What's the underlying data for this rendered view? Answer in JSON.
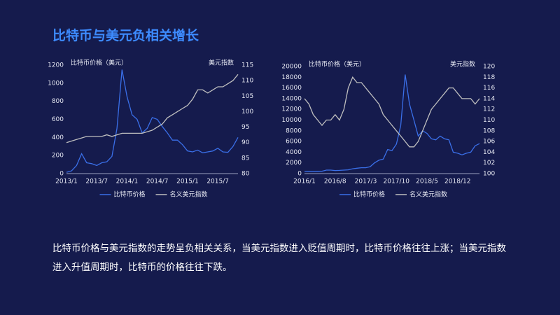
{
  "title": "比特币与美元负相关增长",
  "text": "比特币价格与美元指数的走势呈负相关关系，当美元指数进入贬值周期时，比特币价格往往上涨；当美元指数进入升值周期时，比特币的价格往往下跌。",
  "chart_data": [
    {
      "type": "line",
      "y_label": "比特币价格（美元）",
      "y2_label": "美元指数",
      "categories": [
        "2013/1",
        null,
        null,
        null,
        null,
        null,
        "2013/7",
        null,
        null,
        null,
        null,
        null,
        "2014/1",
        null,
        null,
        null,
        null,
        null,
        "2014/7",
        null,
        null,
        null,
        null,
        null,
        "2015/1",
        null,
        null,
        null,
        null,
        null,
        "2015/7",
        null,
        null,
        null,
        null
      ],
      "series": [
        {
          "name": "比特币价格",
          "color": "#3a6fe8",
          "values": [
            15,
            30,
            90,
            220,
            120,
            110,
            90,
            120,
            130,
            190,
            500,
            1150,
            850,
            650,
            600,
            450,
            500,
            620,
            600,
            520,
            450,
            370,
            370,
            320,
            250,
            240,
            260,
            230,
            240,
            250,
            280,
            240,
            235,
            300,
            400
          ]
        },
        {
          "name": "名义美元指数",
          "color": "#bfbfbf",
          "axis": "y2",
          "values": [
            90,
            90.5,
            91,
            91.5,
            92,
            92,
            92,
            92,
            92.5,
            92,
            92.5,
            93,
            93,
            93,
            93,
            93,
            93.5,
            94,
            95,
            96,
            98,
            99,
            100,
            101,
            102,
            104,
            107,
            107,
            106,
            107,
            108,
            108,
            109,
            110,
            112
          ]
        }
      ],
      "ylim": [
        0,
        1200
      ],
      "yticks": [
        0,
        200,
        400,
        600,
        800,
        1000,
        1200
      ],
      "y2lim": [
        80,
        115
      ],
      "y2ticks": [
        80,
        85,
        90,
        95,
        100,
        105,
        110,
        115
      ]
    },
    {
      "type": "line",
      "y_label": "比特币价格（美元）",
      "y2_label": "美元指数",
      "categories": [
        "2016/1",
        null,
        null,
        null,
        null,
        null,
        null,
        "2016/8",
        null,
        null,
        null,
        null,
        null,
        null,
        "2017/3",
        null,
        null,
        null,
        null,
        null,
        null,
        "2017/10",
        null,
        null,
        null,
        null,
        null,
        null,
        "2018/5",
        null,
        null,
        null,
        null,
        null,
        null,
        "2018/12",
        null,
        null,
        null,
        null,
        null
      ],
      "series": [
        {
          "name": "比特币价格",
          "color": "#3a6fe8",
          "values": [
            400,
            420,
            420,
            430,
            450,
            650,
            650,
            580,
            600,
            650,
            700,
            900,
            1000,
            1100,
            1100,
            1300,
            2000,
            2500,
            2700,
            4500,
            4300,
            5500,
            9000,
            18500,
            13000,
            10000,
            7000,
            8000,
            7500,
            6500,
            6300,
            7000,
            6500,
            6300,
            4000,
            3800,
            3500,
            3800,
            4000,
            5200,
            5600
          ]
        },
        {
          "name": "名义美元指数",
          "color": "#bfbfbf",
          "axis": "y2",
          "values": [
            114,
            113,
            111,
            110,
            109,
            110,
            110,
            111,
            110,
            112,
            116,
            118,
            117,
            117,
            116,
            115,
            114,
            113,
            111,
            110,
            109,
            108,
            107,
            106,
            105,
            105,
            106,
            108,
            110,
            112,
            113,
            114,
            115,
            116,
            116,
            115,
            114,
            114,
            114,
            113,
            114
          ]
        }
      ],
      "ylim": [
        0,
        20000
      ],
      "yticks": [
        0,
        2000,
        4000,
        6000,
        8000,
        10000,
        12000,
        14000,
        16000,
        18000,
        20000
      ],
      "y2lim": [
        100,
        120
      ],
      "y2ticks": [
        100,
        102,
        104,
        106,
        108,
        110,
        112,
        114,
        116,
        118,
        120
      ]
    }
  ]
}
